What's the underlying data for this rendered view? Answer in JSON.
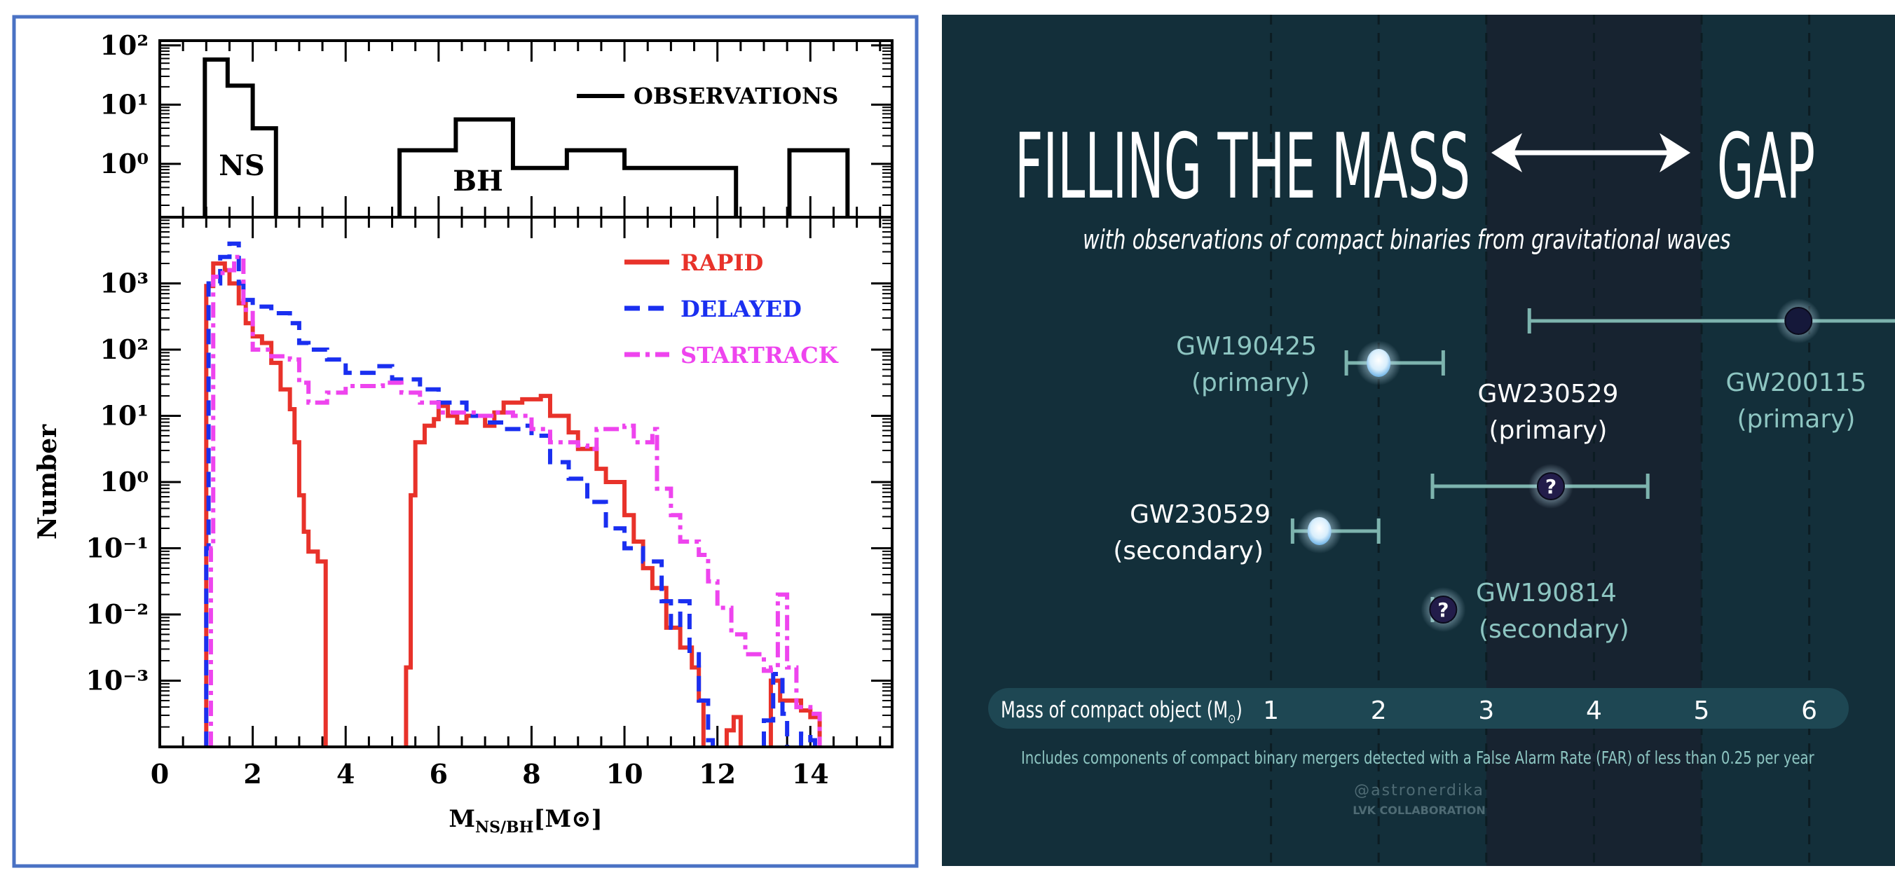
{
  "chart_data": [
    {
      "type": "line",
      "style": "step-histogram",
      "top_panel": {
        "yscale": "log",
        "ylim_log10": [
          -0.9,
          2.08
        ],
        "yticks": [
          "10²",
          "10¹",
          "10⁰"
        ],
        "ytick_log10": [
          2,
          1,
          0
        ],
        "legend": "top-right",
        "labels": {
          "ns": "NS",
          "bh": "BH"
        },
        "series": [
          {
            "name": "OBSERVATIONS",
            "color": "#000000",
            "dash": "solid",
            "segments": [
              [
                [
                  0.97,
                  1.76
                ],
                [
                  1.46,
                  1.32
                ],
                [
                  2.0,
                  0.6
                ],
                [
                  2.5,
                  null
                ]
              ],
              [
                [
                  5.16,
                  0.23
                ],
                [
                  6.37,
                  0.75
                ],
                [
                  7.6,
                  -0.07
                ],
                [
                  8.76,
                  0.23
                ],
                [
                  10.0,
                  -0.07
                ],
                [
                  12.4,
                  null
                ]
              ],
              [
                [
                  13.55,
                  0.23
                ],
                [
                  14.8,
                  null
                ]
              ]
            ]
          }
        ]
      },
      "bottom_panel": {
        "yscale": "log",
        "ylim_log10": [
          -4,
          4
        ],
        "ylabel": "Number",
        "yticks": [
          "10³",
          "10²",
          "10¹",
          "10⁰",
          "10⁻¹",
          "10⁻²",
          "10⁻³"
        ],
        "ytick_log10": [
          3,
          2,
          1,
          0,
          -1,
          -2,
          -3
        ],
        "legend": "top-right",
        "series": [
          {
            "name": "RAPID",
            "color": "#e8322a",
            "dash": "solid",
            "segments": [
              [
                [
                  1.0,
                  2.96
                ],
                [
                  1.15,
                  3.3
                ],
                [
                  1.4,
                  3.2
                ],
                [
                  1.5,
                  3.0
                ],
                [
                  1.7,
                  2.7
                ],
                [
                  1.85,
                  2.4
                ],
                [
                  2.0,
                  2.2
                ],
                [
                  2.2,
                  2.1
                ],
                [
                  2.4,
                  1.8
                ],
                [
                  2.6,
                  1.4
                ],
                [
                  2.8,
                  1.1
                ],
                [
                  2.9,
                  0.6
                ],
                [
                  3.0,
                  -0.2
                ],
                [
                  3.1,
                  -0.75
                ],
                [
                  3.2,
                  -1.05
                ],
                [
                  3.4,
                  -1.2
                ],
                [
                  3.57,
                  null
                ]
              ],
              [
                [
                  5.3,
                  -2.8
                ],
                [
                  5.4,
                  -0.2
                ],
                [
                  5.5,
                  0.6
                ],
                [
                  5.7,
                  0.85
                ],
                [
                  5.9,
                  0.95
                ],
                [
                  6.0,
                  1.15
                ],
                [
                  6.2,
                  1.0
                ],
                [
                  6.4,
                  0.9
                ],
                [
                  6.6,
                  1.0
                ],
                [
                  7.0,
                  0.85
                ],
                [
                  7.2,
                  1.05
                ],
                [
                  7.4,
                  1.2
                ],
                [
                  7.8,
                  1.25
                ],
                [
                  8.2,
                  1.3
                ],
                [
                  8.4,
                  1.0
                ],
                [
                  8.8,
                  0.75
                ],
                [
                  9.0,
                  0.5
                ],
                [
                  9.4,
                  0.2
                ],
                [
                  9.6,
                  0.0
                ],
                [
                  10.0,
                  -0.5
                ],
                [
                  10.2,
                  -0.9
                ],
                [
                  10.4,
                  -1.3
                ],
                [
                  10.6,
                  -1.6
                ],
                [
                  10.9,
                  -2.2
                ],
                [
                  11.2,
                  -2.5
                ],
                [
                  11.45,
                  -2.8
                ],
                [
                  11.6,
                  -3.3
                ],
                [
                  11.7,
                  null
                ]
              ],
              [
                [
                  12.2,
                  -3.75
                ],
                [
                  12.35,
                  -3.55
                ],
                [
                  12.5,
                  null
                ]
              ],
              [
                [
                  13.15,
                  -3.0
                ],
                [
                  13.35,
                  -3.3
                ],
                [
                  13.8,
                  -3.45
                ],
                [
                  14.0,
                  -3.55
                ],
                [
                  14.2,
                  null
                ]
              ]
            ]
          },
          {
            "name": "DELAYED",
            "color": "#1a2ff0",
            "dash": "dashed",
            "segments": [
              [
                [
                  1.0,
                  -1.0
                ],
                [
                  1.05,
                  3.0
                ],
                [
                  1.3,
                  3.4
                ],
                [
                  1.5,
                  3.6
                ],
                [
                  1.7,
                  3.0
                ],
                [
                  1.8,
                  2.75
                ],
                [
                  2.0,
                  2.65
                ],
                [
                  2.4,
                  2.55
                ],
                [
                  2.8,
                  2.4
                ],
                [
                  3.0,
                  2.1
                ],
                [
                  3.2,
                  2.0
                ],
                [
                  3.6,
                  1.85
                ],
                [
                  4.0,
                  1.65
                ],
                [
                  4.6,
                  1.75
                ],
                [
                  5.0,
                  1.55
                ],
                [
                  5.6,
                  1.4
                ],
                [
                  6.0,
                  1.2
                ],
                [
                  6.6,
                  1.0
                ],
                [
                  7.0,
                  0.9
                ],
                [
                  7.4,
                  0.8
                ],
                [
                  7.8,
                  0.85
                ],
                [
                  8.0,
                  0.7
                ],
                [
                  8.4,
                  0.3
                ],
                [
                  8.8,
                  0.05
                ],
                [
                  9.2,
                  -0.3
                ],
                [
                  9.6,
                  -0.7
                ],
                [
                  10.0,
                  -1.0
                ],
                [
                  10.4,
                  -1.2
                ],
                [
                  10.8,
                  -1.8
                ],
                [
                  11.0,
                  -2.2
                ],
                [
                  11.2,
                  -1.8
                ],
                [
                  11.4,
                  -2.6
                ],
                [
                  11.6,
                  -3.3
                ],
                [
                  11.8,
                  -3.9
                ],
                [
                  11.9,
                  null
                ]
              ],
              [
                [
                  13.0,
                  -3.6
                ],
                [
                  13.2,
                  -2.9
                ],
                [
                  13.4,
                  -3.5
                ],
                [
                  13.5,
                  null
                ]
              ],
              [
                [
                  13.8,
                  -3.8
                ],
                [
                  14.0,
                  -3.9
                ],
                [
                  14.1,
                  null
                ]
              ]
            ]
          },
          {
            "name": "STARTRACK",
            "color": "#ee44ee",
            "dash": "dashdot",
            "segments": [
              [
                [
                  1.1,
                  -1.0
                ],
                [
                  1.15,
                  3.1
                ],
                [
                  1.35,
                  3.2
                ],
                [
                  1.6,
                  3.4
                ],
                [
                  1.8,
                  2.6
                ],
                [
                  2.0,
                  2.0
                ],
                [
                  2.4,
                  1.9
                ],
                [
                  2.8,
                  1.85
                ],
                [
                  3.0,
                  1.5
                ],
                [
                  3.2,
                  1.2
                ],
                [
                  3.6,
                  1.35
                ],
                [
                  4.0,
                  1.45
                ],
                [
                  4.8,
                  1.5
                ],
                [
                  5.2,
                  1.35
                ],
                [
                  5.6,
                  1.2
                ],
                [
                  6.0,
                  1.05
                ],
                [
                  6.8,
                  1.0
                ],
                [
                  7.2,
                  1.05
                ],
                [
                  7.6,
                  1.0
                ],
                [
                  8.0,
                  0.8
                ],
                [
                  8.4,
                  0.6
                ],
                [
                  9.0,
                  0.55
                ],
                [
                  9.2,
                  0.5
                ],
                [
                  9.4,
                  0.8
                ],
                [
                  10.0,
                  0.85
                ],
                [
                  10.2,
                  0.6
                ],
                [
                  10.6,
                  0.8
                ],
                [
                  10.7,
                  -0.1
                ],
                [
                  11.0,
                  -0.5
                ],
                [
                  11.2,
                  -0.9
                ],
                [
                  11.6,
                  -1.1
                ],
                [
                  11.8,
                  -1.5
                ],
                [
                  12.0,
                  -1.9
                ],
                [
                  12.3,
                  -2.3
                ],
                [
                  12.6,
                  -2.6
                ],
                [
                  13.0,
                  -2.85
                ],
                [
                  13.15,
                  -2.8
                ],
                [
                  13.3,
                  -1.7
                ],
                [
                  13.5,
                  -2.8
                ],
                [
                  13.7,
                  -3.4
                ],
                [
                  14.0,
                  -3.5
                ],
                [
                  14.2,
                  null
                ]
              ]
            ]
          }
        ]
      },
      "xlabel": {
        "main": "M",
        "sub": "NS/BH",
        "unit": "[M⊙]"
      },
      "xlim": [
        0,
        15.76
      ],
      "xticks": [
        0,
        2,
        4,
        6,
        8,
        10,
        12,
        14
      ]
    },
    {
      "type": "scatter",
      "title": "FILLING THE MASS",
      "title_end": "GAP",
      "subtitle": "with observations of compact binaries from gravitational waves",
      "xlabel": "Mass of compact object (M",
      "xlabel_sub": "⊙",
      "xlabel_close": ")",
      "xticks": [
        1,
        2,
        3,
        4,
        5,
        6
      ],
      "mass_gap": [
        3,
        5
      ],
      "footnote": "Includes components of compact binary mergers detected with a False Alarm Rate (FAR) of less than 0.25 per year",
      "credit": "@astronerdika",
      "credit2": "LVK COLLABORATION",
      "colors": {
        "background": "#132f3a",
        "gap": "#172330",
        "axis_bar": "#1e4753",
        "teal": "#8dc5c1",
        "errorbar": "#7db4ae"
      },
      "points": [
        {
          "name": "GW190425",
          "role": "(primary)",
          "mass": 2.0,
          "low": 1.7,
          "high": 2.6,
          "kind": "ns",
          "label_color": "teal"
        },
        {
          "name": "GW200115",
          "role": "(primary)",
          "mass": 5.9,
          "low": 3.4,
          "high": 7.0,
          "kind": "bh",
          "label_color": "teal"
        },
        {
          "name": "GW230529",
          "role": "(primary)",
          "mass": 3.6,
          "low": 2.5,
          "high": 4.5,
          "kind": "unknown",
          "label_color": "white"
        },
        {
          "name": "GW230529",
          "role": "(secondary)",
          "mass": 1.45,
          "low": 1.2,
          "high": 2.0,
          "kind": "ns",
          "label_color": "white"
        },
        {
          "name": "GW190814",
          "role": "(secondary)",
          "mass": 2.6,
          "low": 2.5,
          "high": 2.65,
          "kind": "unknown",
          "label_color": "teal"
        }
      ],
      "unknown_symbol": "?"
    }
  ]
}
